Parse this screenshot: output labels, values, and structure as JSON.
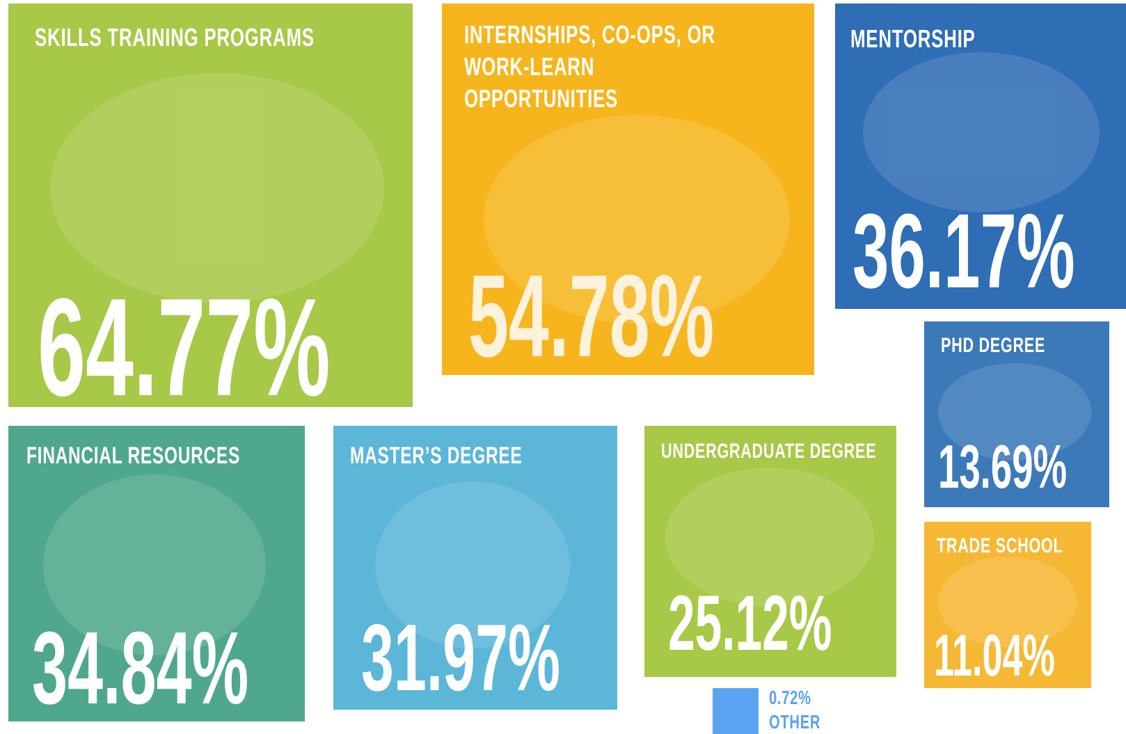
{
  "tiles": [
    {
      "title": "SKILLS TRAINING PROGRAMS",
      "value": "64.77%"
    },
    {
      "title": "INTERNSHIPS, CO-OPS, OR WORK-LEARN OPPORTUNITIES",
      "value": "54.78%"
    },
    {
      "title": "MENTORSHIP",
      "value": "36.17%"
    },
    {
      "title": "PHD DEGREE",
      "value": "13.69%"
    },
    {
      "title": "TRADE SCHOOL",
      "value": "11.04%"
    },
    {
      "title": "FINANCIAL RESOURCES",
      "value": "34.84%"
    },
    {
      "title": "MASTER’S DEGREE",
      "value": "31.97%"
    },
    {
      "title": "UNDERGRADUATE DEGREE",
      "value": "25.12%"
    },
    {
      "title": "OTHER",
      "value": "0.72%"
    }
  ]
}
